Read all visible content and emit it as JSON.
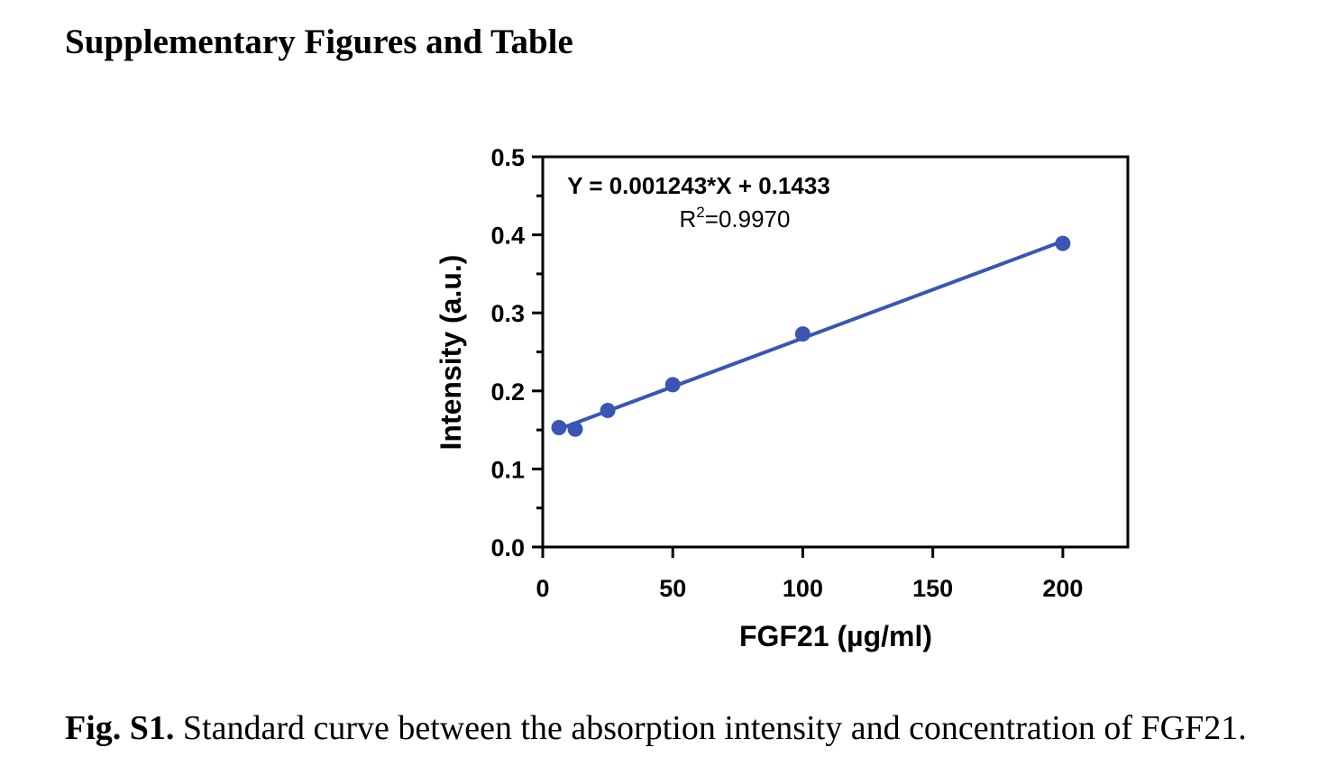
{
  "page": {
    "heading": "Supplementary Figures and Table",
    "caption_label": "Fig. S1.",
    "caption_text": " Standard curve between the absorption intensity and concentration of FGF21."
  },
  "colors": {
    "series": "#3a55b3",
    "axis": "#000000"
  },
  "chart_data": {
    "type": "scatter",
    "title": "",
    "xlabel": "FGF21 (µg/ml)",
    "ylabel": "Intensity (a.u.)",
    "xlim": [
      0,
      225
    ],
    "ylim": [
      0,
      0.5
    ],
    "xticks": [
      0,
      50,
      100,
      150,
      200
    ],
    "yticks": [
      0.0,
      0.1,
      0.2,
      0.3,
      0.4,
      0.5
    ],
    "ytick_labels": [
      "0.0",
      "0.1",
      "0.2",
      "0.3",
      "0.4",
      "0.5"
    ],
    "points": [
      {
        "x": 6.25,
        "y": 0.153
      },
      {
        "x": 12.5,
        "y": 0.151
      },
      {
        "x": 25,
        "y": 0.175
      },
      {
        "x": 50,
        "y": 0.208
      },
      {
        "x": 100,
        "y": 0.273
      },
      {
        "x": 200,
        "y": 0.389
      }
    ],
    "fit": {
      "slope": 0.001243,
      "intercept": 0.1433,
      "x_range": [
        6.25,
        200
      ],
      "equation": "Y = 0.001243*X + 0.1433",
      "r2_prefix": "R",
      "r2_sup": "2",
      "r2_value": "=0.9970"
    },
    "grid": false,
    "legend": "none"
  }
}
